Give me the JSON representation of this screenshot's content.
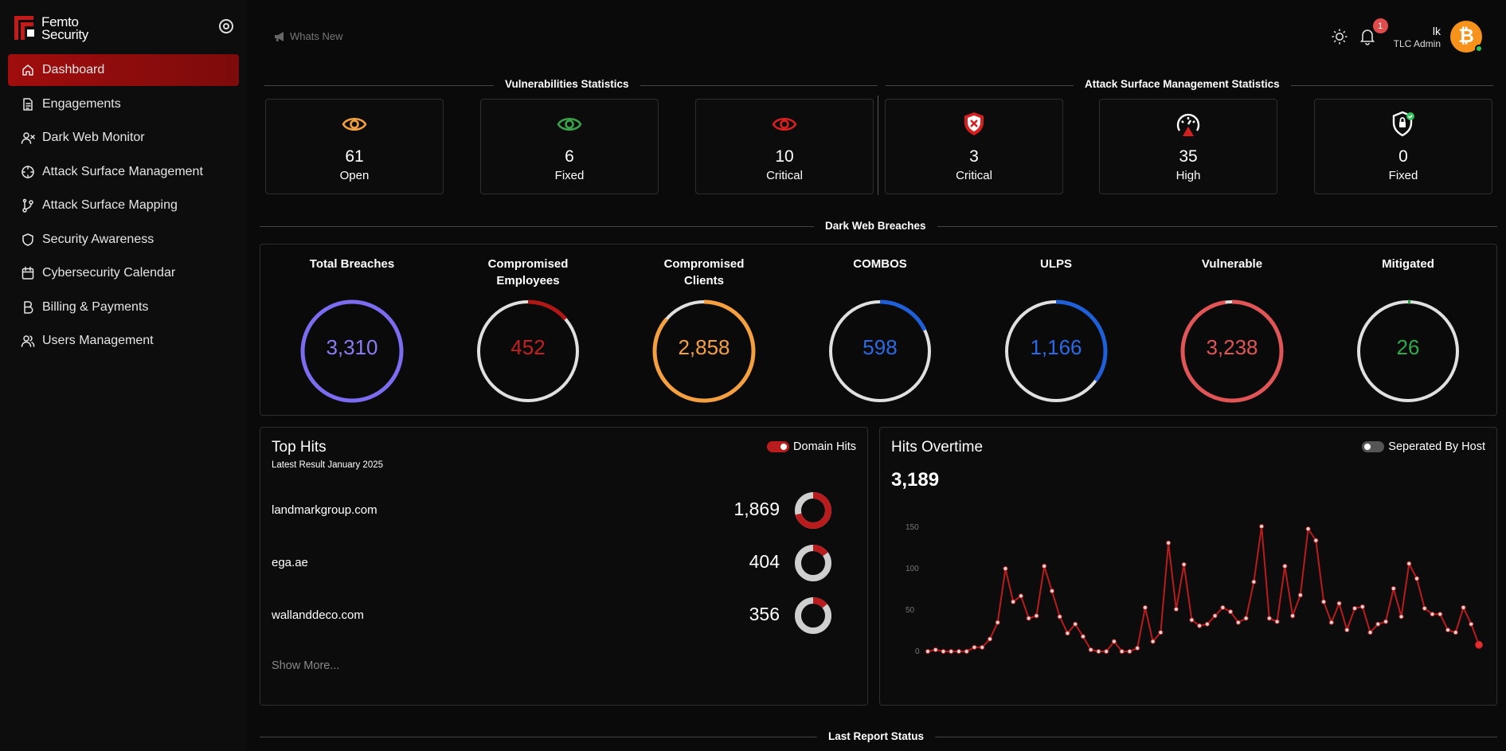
{
  "brand": {
    "line1": "Femto",
    "line2": "Security"
  },
  "nav": [
    {
      "label": "Dashboard",
      "icon": "home-icon",
      "active": true
    },
    {
      "label": "Engagements",
      "icon": "document-icon"
    },
    {
      "label": "Dark Web Monitor",
      "icon": "user-x-icon"
    },
    {
      "label": "Attack Surface Management",
      "icon": "crosshair-icon"
    },
    {
      "label": "Attack Surface Mapping",
      "icon": "git-branch-icon"
    },
    {
      "label": "Security Awareness",
      "icon": "shield-icon"
    },
    {
      "label": "Cybersecurity Calendar",
      "icon": "calendar-icon"
    },
    {
      "label": "Billing & Payments",
      "icon": "bitcoin-b-icon"
    },
    {
      "label": "Users Management",
      "icon": "users-icon"
    }
  ],
  "topbar": {
    "whats_new": "Whats New",
    "notification_count": "1",
    "user_name": "lk",
    "user_role": "TLC Admin"
  },
  "vuln_stats": {
    "title": "Vulnerabilities Statistics",
    "cards": [
      {
        "value": "61",
        "label": "Open",
        "icon": "eye-icon",
        "color": "#f0a040"
      },
      {
        "value": "6",
        "label": "Fixed",
        "icon": "eye-icon",
        "color": "#3aa04a"
      },
      {
        "value": "10",
        "label": "Critical",
        "icon": "eye-icon",
        "color": "#d42020"
      }
    ]
  },
  "asm_stats": {
    "title": "Attack Surface Management Statistics",
    "cards": [
      {
        "value": "3",
        "label": "Critical",
        "icon": "shield-x-icon",
        "color": "#d42020"
      },
      {
        "value": "35",
        "label": "High",
        "icon": "gauge-icon",
        "color": "#d42020"
      },
      {
        "value": "0",
        "label": "Fixed",
        "icon": "shield-lock-icon",
        "color": "#2ec35b"
      }
    ]
  },
  "dark_web": {
    "title": "Dark Web Breaches",
    "items": [
      {
        "title_l1": "Total Breaches",
        "title_l2": "",
        "value": "3,310",
        "fraction": 1.0,
        "color": "#7b6cf0",
        "text_color": "#8a7cf5"
      },
      {
        "title_l1": "Compromised",
        "title_l2": "Employees",
        "value": "452",
        "fraction": 0.137,
        "color": "#b01818",
        "text_color": "#c52020"
      },
      {
        "title_l1": "Compromised",
        "title_l2": "Clients",
        "value": "2,858",
        "fraction": 0.863,
        "color": "#f5a040",
        "text_color": "#f5a040"
      },
      {
        "title_l1": "COMBOS",
        "title_l2": "",
        "value": "598",
        "fraction": 0.18,
        "color": "#1f60d8",
        "text_color": "#2a6ae6"
      },
      {
        "title_l1": "ULPS",
        "title_l2": "",
        "value": "1,166",
        "fraction": 0.352,
        "color": "#1f60d8",
        "text_color": "#2a6ae6"
      },
      {
        "title_l1": "Vulnerable",
        "title_l2": "",
        "value": "3,238",
        "fraction": 0.978,
        "color": "#e05555",
        "text_color": "#e05555"
      },
      {
        "title_l1": "Mitigated",
        "title_l2": "",
        "value": "26",
        "fraction": 0.008,
        "color": "#2ea84a",
        "text_color": "#2ea84a"
      }
    ]
  },
  "top_hits": {
    "title": "Top Hits",
    "subtitle": "Latest Result January 2025",
    "toggle_label": "Domain Hits",
    "toggle_on": true,
    "rows": [
      {
        "domain": "landmarkgroup.com",
        "count": "1,869",
        "fraction": 0.71
      },
      {
        "domain": "ega.ae",
        "count": "404",
        "fraction": 0.15
      },
      {
        "domain": "wallanddeco.com",
        "count": "356",
        "fraction": 0.14
      }
    ],
    "show_more": "Show More..."
  },
  "hits_overtime": {
    "title": "Hits Overtime",
    "toggle_label": "Seperated By Host",
    "toggle_on": false,
    "total": "3,189"
  },
  "chart_data": {
    "type": "line",
    "title": "Hits Overtime",
    "ylim": [
      0,
      150
    ],
    "yticks": [
      0,
      50,
      100,
      150
    ],
    "series": [
      {
        "values": [
          0,
          2,
          0,
          0,
          0,
          0,
          5,
          5,
          15,
          35,
          100,
          60,
          67,
          40,
          43,
          103,
          73,
          42,
          22,
          33,
          18,
          2,
          0,
          0,
          12,
          0,
          0,
          4,
          53,
          12,
          23,
          131,
          51,
          105,
          38,
          31,
          33,
          43,
          53,
          48,
          35,
          40,
          84,
          151,
          40,
          36,
          103,
          43,
          68,
          148,
          134,
          60,
          35,
          58,
          26,
          52,
          54,
          23,
          33,
          36,
          76,
          42,
          106,
          88,
          52,
          45,
          45,
          26,
          23,
          53,
          33,
          8
        ]
      }
    ],
    "line_color": "#b81c1c",
    "grid": false
  },
  "last_report": {
    "title": "Last Report Status"
  }
}
